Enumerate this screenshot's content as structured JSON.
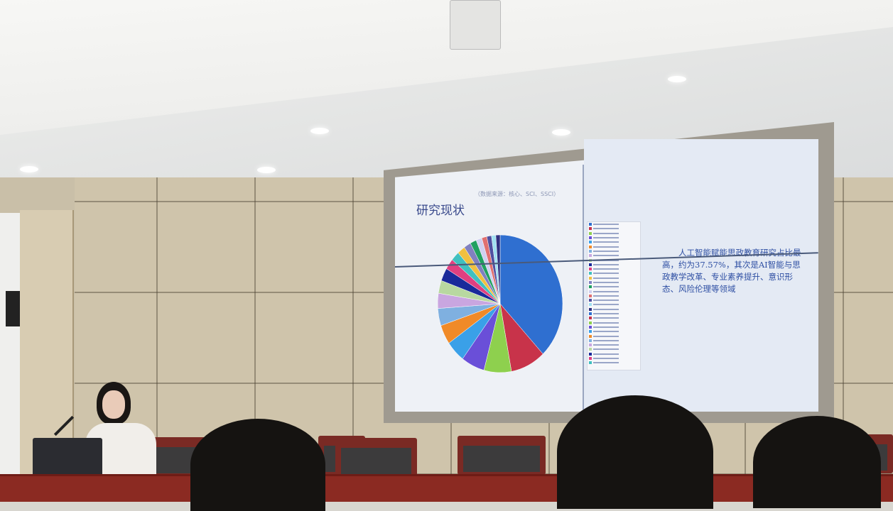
{
  "slide": {
    "title": "研究现状",
    "subtitle": "（数据来源：核心、SCI、SSCI）",
    "note": "人工智能赋能思政教育研究占比最高，约为37.57%，其次是AI智能与思政教学改革、专业素养提升、意识形态、风险伦理等领域",
    "pie_colors": [
      "#2f6fd0",
      "#c8334a",
      "#8ed04e",
      "#6a4fd8",
      "#3aa0e8",
      "#f08a28",
      "#7fb0e0",
      "#c9a6e0",
      "#b8d8a0",
      "#1a2a9a",
      "#e04080",
      "#40c0c0",
      "#f0c040",
      "#8080c0",
      "#20a060",
      "#d0d0f0",
      "#e07070",
      "#5050a0",
      "#a0e0f0",
      "#303080"
    ],
    "pie_shares_percent": [
      37.57,
      9,
      7,
      6,
      5,
      4.5,
      4,
      3.5,
      3,
      3,
      2.5,
      2.2,
      2,
      1.8,
      1.6,
      1.5,
      1.3,
      1.2,
      1.1,
      1.1
    ]
  }
}
